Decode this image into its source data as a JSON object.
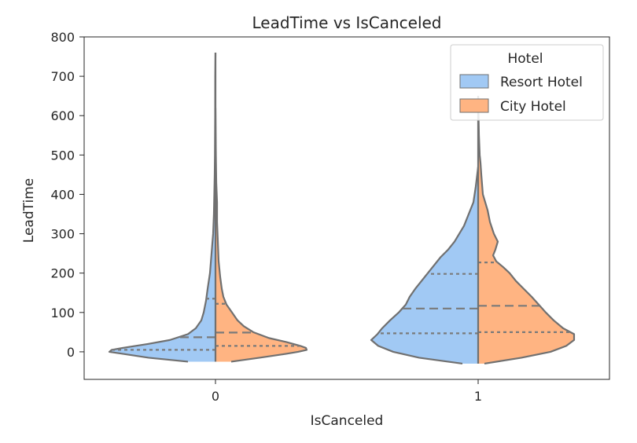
{
  "chart_data": {
    "type": "violin",
    "split": true,
    "title": "LeadTime vs IsCanceled",
    "xlabel": "IsCanceled",
    "ylabel": "LeadTime",
    "categories": [
      "0",
      "1"
    ],
    "ylim": [
      -70,
      800
    ],
    "yticks": [
      0,
      100,
      200,
      300,
      400,
      500,
      600,
      700,
      800
    ],
    "legend": {
      "title": "Hotel",
      "placement": "top-right",
      "entries": [
        "Resort Hotel",
        "City Hotel"
      ]
    },
    "colors": {
      "Resort Hotel": "#a1c9f4",
      "City Hotel": "#ffb482",
      "outline": "#707070",
      "quartile": "#7a7a7a"
    },
    "series": [
      {
        "name": "Resort Hotel",
        "side": "left",
        "groups": [
          {
            "category": "0",
            "y_range": [
              -25,
              760
            ],
            "quartiles": [
              5,
              37,
              135
            ],
            "density": [
              [
                -25,
                35
              ],
              [
                -15,
                85
              ],
              [
                -5,
                118
              ],
              [
                0,
                135
              ],
              [
                5,
                132
              ],
              [
                10,
                118
              ],
              [
                20,
                86
              ],
              [
                30,
                58
              ],
              [
                45,
                35
              ],
              [
                60,
                25
              ],
              [
                80,
                18
              ],
              [
                100,
                15
              ],
              [
                130,
                12
              ],
              [
                160,
                10
              ],
              [
                200,
                7
              ],
              [
                250,
                5
              ],
              [
                300,
                3
              ],
              [
                350,
                2
              ],
              [
                400,
                1.5
              ],
              [
                450,
                1
              ],
              [
                500,
                0.7
              ],
              [
                600,
                0.4
              ],
              [
                700,
                0.3
              ],
              [
                760,
                0
              ]
            ]
          },
          {
            "category": "1",
            "y_range": [
              -30,
              470
            ],
            "quartiles": [
              47,
              110,
              198
            ],
            "density": [
              [
                -30,
                20
              ],
              [
                -15,
                75
              ],
              [
                0,
                108
              ],
              [
                15,
                127
              ],
              [
                30,
                136
              ],
              [
                45,
                128
              ],
              [
                60,
                122
              ],
              [
                80,
                112
              ],
              [
                100,
                101
              ],
              [
                120,
                92
              ],
              [
                140,
                87
              ],
              [
                160,
                80
              ],
              [
                180,
                72
              ],
              [
                200,
                64
              ],
              [
                220,
                56
              ],
              [
                240,
                48
              ],
              [
                260,
                38
              ],
              [
                280,
                30
              ],
              [
                300,
                24
              ],
              [
                320,
                18
              ],
              [
                350,
                12
              ],
              [
                380,
                6
              ],
              [
                420,
                3
              ],
              [
                470,
                0
              ]
            ]
          }
        ]
      },
      {
        "name": "City Hotel",
        "side": "right",
        "groups": [
          {
            "category": "0",
            "y_range": [
              -25,
              620
            ],
            "quartiles": [
              15,
              49,
              122
            ],
            "density": [
              [
                -25,
                20
              ],
              [
                -15,
                56
              ],
              [
                -5,
                90
              ],
              [
                0,
                105
              ],
              [
                5,
                116
              ],
              [
                10,
                115
              ],
              [
                15,
                108
              ],
              [
                25,
                90
              ],
              [
                35,
                68
              ],
              [
                50,
                48
              ],
              [
                65,
                36
              ],
              [
                80,
                28
              ],
              [
                100,
                21
              ],
              [
                120,
                14
              ],
              [
                140,
                10
              ],
              [
                160,
                8
              ],
              [
                190,
                6
              ],
              [
                230,
                4
              ],
              [
                280,
                3
              ],
              [
                330,
                2
              ],
              [
                380,
                2
              ],
              [
                430,
                1
              ],
              [
                500,
                0.5
              ],
              [
                620,
                0
              ]
            ]
          },
          {
            "category": "1",
            "y_range": [
              -30,
              650
            ],
            "quartiles": [
              50,
              117,
              227
            ],
            "density": [
              [
                -30,
                8
              ],
              [
                -15,
                55
              ],
              [
                0,
                92
              ],
              [
                15,
                112
              ],
              [
                30,
                122
              ],
              [
                45,
                122
              ],
              [
                60,
                108
              ],
              [
                80,
                96
              ],
              [
                100,
                86
              ],
              [
                120,
                77
              ],
              [
                140,
                68
              ],
              [
                160,
                58
              ],
              [
                180,
                48
              ],
              [
                200,
                40
              ],
              [
                215,
                32
              ],
              [
                230,
                23
              ],
              [
                245,
                19
              ],
              [
                260,
                22
              ],
              [
                280,
                25
              ],
              [
                300,
                20
              ],
              [
                330,
                15
              ],
              [
                360,
                12
              ],
              [
                400,
                6
              ],
              [
                450,
                4
              ],
              [
                480,
                3
              ],
              [
                500,
                2
              ],
              [
                550,
                1
              ],
              [
                600,
                0.5
              ],
              [
                650,
                0
              ]
            ]
          }
        ]
      }
    ]
  }
}
